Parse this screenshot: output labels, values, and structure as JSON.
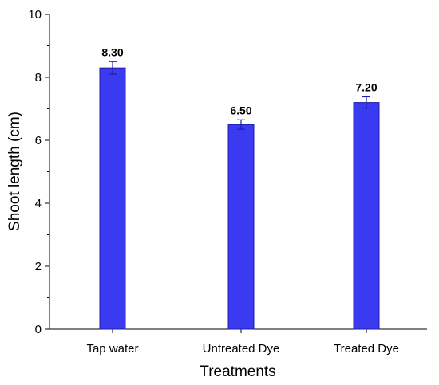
{
  "chart_data": {
    "type": "bar",
    "categories": [
      "Tap water",
      "Untreated Dye",
      "Treated Dye"
    ],
    "values": [
      8.3,
      6.5,
      7.2
    ],
    "value_labels": [
      "8.30",
      "6.50",
      "7.20"
    ],
    "error": [
      0.2,
      0.15,
      0.18
    ],
    "xlabel": "Treatments",
    "ylabel": "Shoot length (cm)",
    "ylim": [
      0,
      10
    ],
    "yticks": [
      0,
      2,
      4,
      6,
      8,
      10
    ],
    "ytick_labels": [
      "0",
      "2",
      "4",
      "6",
      "8",
      "10"
    ],
    "grid": false,
    "legend": "none",
    "bar_color": "#3a3af0",
    "bar_edge_color": "#1e1ea8",
    "errorbar_color": "#1e1ea8"
  }
}
